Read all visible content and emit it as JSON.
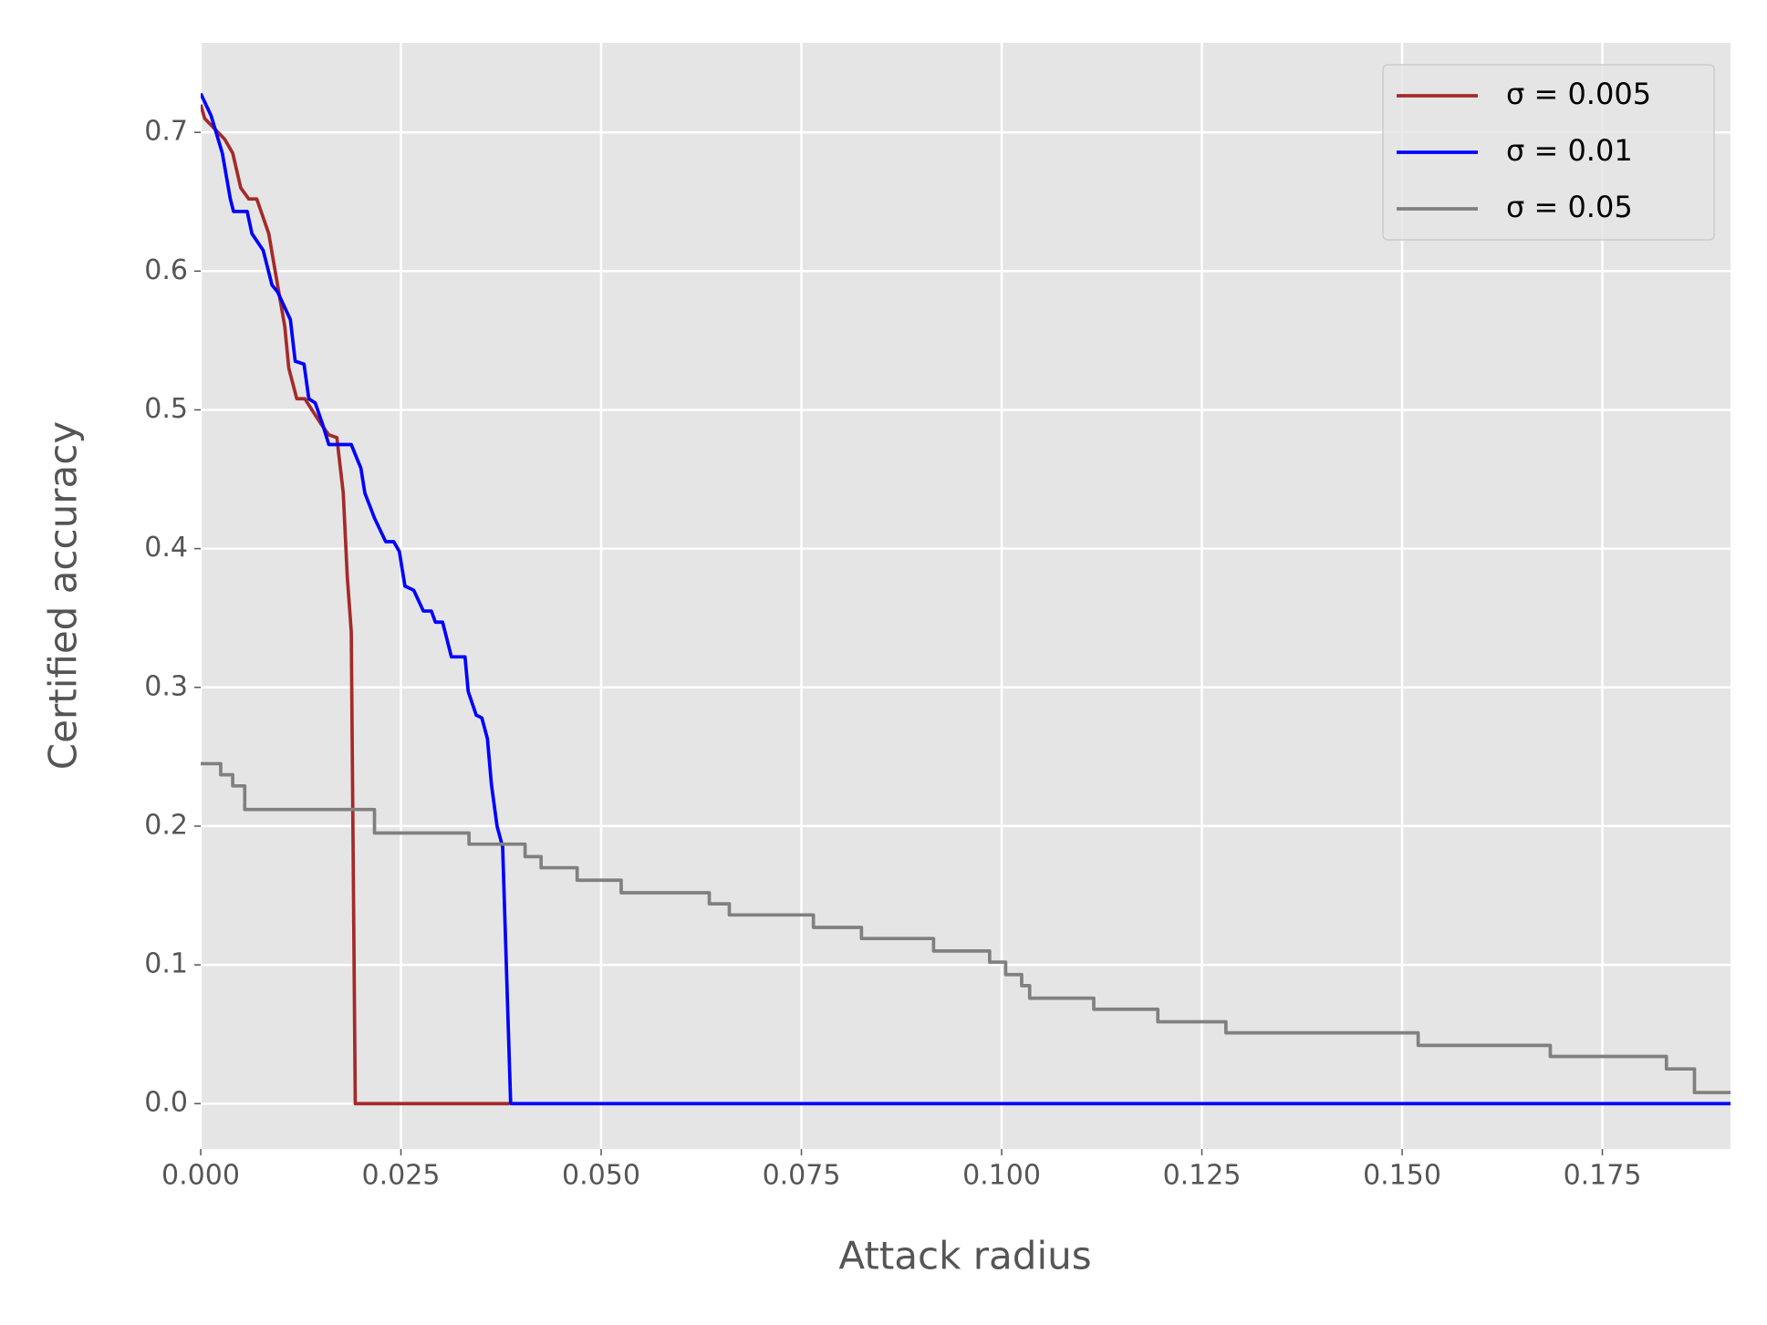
{
  "chart_data": {
    "type": "line",
    "xlabel": "Attack radius",
    "ylabel": "Certified accuracy",
    "xlim": [
      0,
      0.191
    ],
    "ylim": [
      -0.0327,
      0.7645
    ],
    "xticks": [
      {
        "value": 0,
        "label": "0.000"
      },
      {
        "value": 0.025,
        "label": "0.025"
      },
      {
        "value": 0.05,
        "label": "0.050"
      },
      {
        "value": 0.075,
        "label": "0.075"
      },
      {
        "value": 0.1,
        "label": "0.100"
      },
      {
        "value": 0.125,
        "label": "0.125"
      },
      {
        "value": 0.15,
        "label": "0.150"
      },
      {
        "value": 0.175,
        "label": "0.175"
      }
    ],
    "yticks": [
      {
        "value": 0,
        "label": "0.0"
      },
      {
        "value": 0.1,
        "label": "0.1"
      },
      {
        "value": 0.2,
        "label": "0.2"
      },
      {
        "value": 0.3,
        "label": "0.3"
      },
      {
        "value": 0.4,
        "label": "0.4"
      },
      {
        "value": 0.5,
        "label": "0.5"
      },
      {
        "value": 0.6,
        "label": "0.6"
      },
      {
        "value": 0.7,
        "label": "0.7"
      }
    ],
    "grid": true,
    "legend": "upper right",
    "series": [
      {
        "name": "σ = 0.005",
        "color": "#a52a2a",
        "drawstyle": "default",
        "x": [
          0,
          0.0005,
          0.003,
          0.004,
          0.005,
          0.006,
          0.007,
          0.0085,
          0.009,
          0.0105,
          0.011,
          0.012,
          0.013,
          0.015,
          0.016,
          0.017,
          0.0178,
          0.0183,
          0.0188,
          0.0193,
          0.0195,
          0.0385
        ],
        "values": [
          0.72,
          0.71,
          0.695,
          0.685,
          0.66,
          0.652,
          0.652,
          0.627,
          0.61,
          0.56,
          0.53,
          0.508,
          0.508,
          0.49,
          0.482,
          0.48,
          0.44,
          0.38,
          0.34,
          0,
          0,
          0
        ]
      },
      {
        "name": "σ = 0.01",
        "color": "#0000ff",
        "drawstyle": "default",
        "x": [
          0,
          0.0013,
          0.0027,
          0.0037,
          0.0041,
          0.0058,
          0.0064,
          0.0078,
          0.0089,
          0.0096,
          0.0112,
          0.0118,
          0.0129,
          0.0135,
          0.0143,
          0.0152,
          0.016,
          0.0188,
          0.02,
          0.0205,
          0.0217,
          0.0231,
          0.0241,
          0.0248,
          0.0255,
          0.0266,
          0.0278,
          0.0288,
          0.0293,
          0.0302,
          0.0306,
          0.0313,
          0.033,
          0.0334,
          0.0344,
          0.0351,
          0.0358,
          0.0363,
          0.037,
          0.0377,
          0.0387,
          0.191
        ],
        "values": [
          0.728,
          0.712,
          0.685,
          0.652,
          0.643,
          0.643,
          0.627,
          0.615,
          0.59,
          0.585,
          0.565,
          0.535,
          0.533,
          0.508,
          0.505,
          0.49,
          0.475,
          0.475,
          0.458,
          0.44,
          0.422,
          0.405,
          0.405,
          0.398,
          0.373,
          0.37,
          0.355,
          0.355,
          0.347,
          0.347,
          0.338,
          0.322,
          0.322,
          0.297,
          0.28,
          0.278,
          0.263,
          0.23,
          0.2,
          0.185,
          0,
          0
        ]
      },
      {
        "name": "σ = 0.05",
        "color": "#808080",
        "drawstyle": "steps-post",
        "x": [
          0,
          0.0025,
          0.004,
          0.0055,
          0.0217,
          0.0335,
          0.0405,
          0.0425,
          0.047,
          0.0525,
          0.0635,
          0.066,
          0.0765,
          0.0825,
          0.0915,
          0.0985,
          0.1005,
          0.1025,
          0.1035,
          0.1115,
          0.1195,
          0.128,
          0.152,
          0.1685,
          0.183,
          0.1865,
          0.191
        ],
        "values": [
          0.245,
          0.237,
          0.229,
          0.212,
          0.195,
          0.187,
          0.178,
          0.17,
          0.161,
          0.152,
          0.144,
          0.136,
          0.127,
          0.119,
          0.11,
          0.102,
          0.093,
          0.085,
          0.076,
          0.068,
          0.059,
          0.051,
          0.042,
          0.034,
          0.025,
          0.008,
          0.008
        ]
      }
    ]
  }
}
